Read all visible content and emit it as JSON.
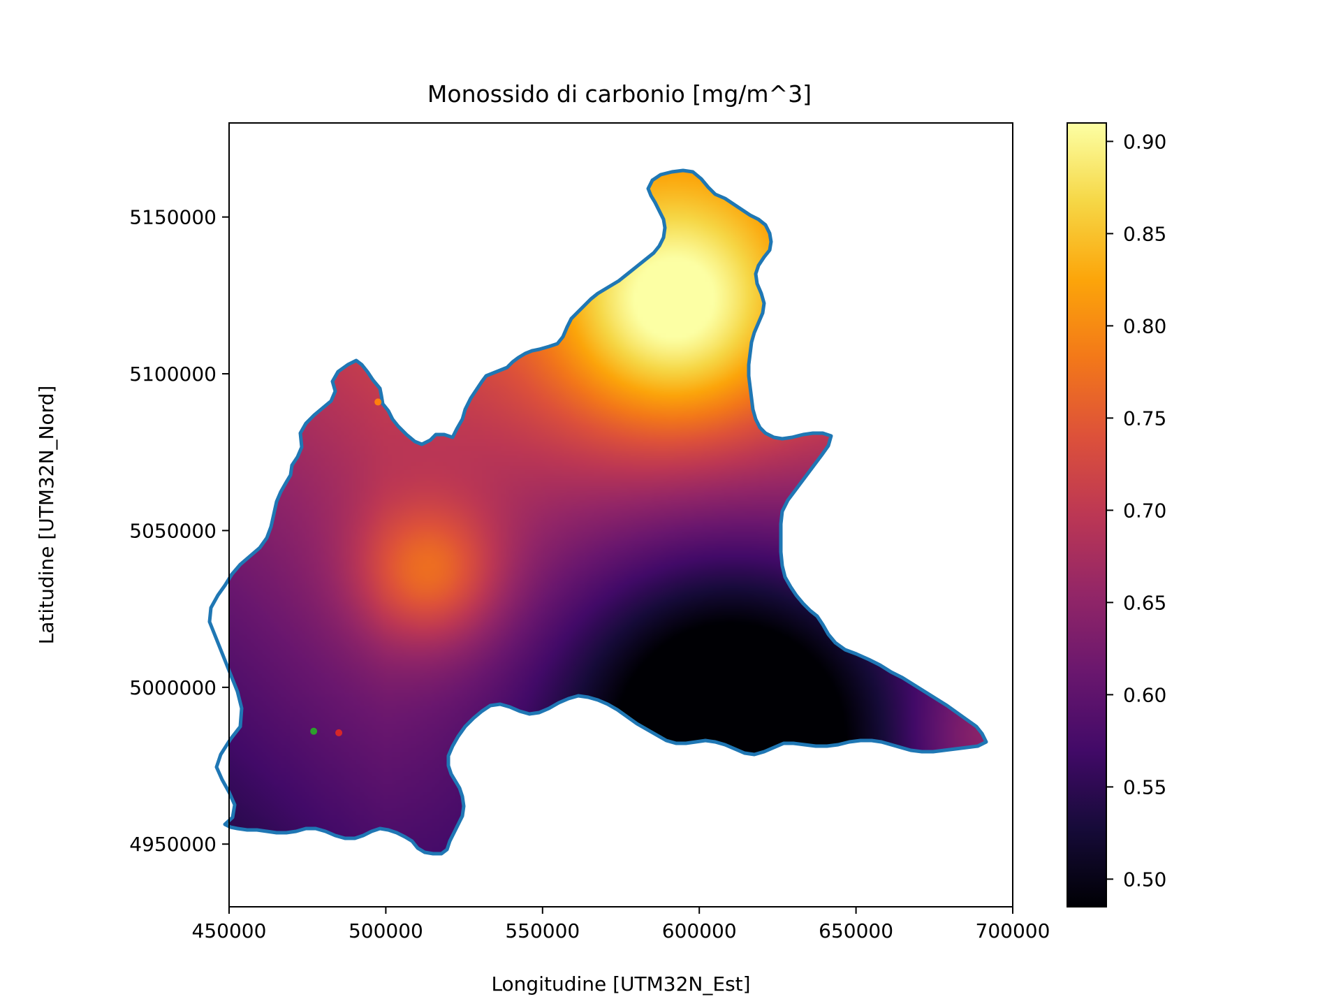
{
  "chart_data": {
    "type": "heatmap",
    "title": "Monossido di carbonio [mg/m^3]",
    "xlabel": "Longitudine [UTM32N_Est]",
    "ylabel": "Latitudine [UTM32N_Nord]",
    "xlim": [
      450000,
      700000
    ],
    "ylim": [
      4930000,
      5180000
    ],
    "xticks": [
      450000,
      500000,
      550000,
      600000,
      650000,
      700000
    ],
    "yticks": [
      4950000,
      5000000,
      5050000,
      5100000,
      5150000
    ],
    "colormap": "inferno",
    "colorbar": {
      "range": [
        0.485,
        0.91
      ],
      "ticks": [
        0.5,
        0.55,
        0.6,
        0.65,
        0.7,
        0.75,
        0.8,
        0.85,
        0.9
      ],
      "tick_labels": [
        "0.50",
        "0.55",
        "0.60",
        "0.65",
        "0.70",
        "0.75",
        "0.80",
        "0.85",
        "0.90"
      ]
    },
    "boundary_color": "#1f77b4",
    "field_peaks": [
      {
        "x": 592000,
        "y": 5120000,
        "value": 0.91
      },
      {
        "x": 514000,
        "y": 5036000,
        "value": 0.8
      },
      {
        "x": 610000,
        "y": 4993000,
        "value": 0.49
      }
    ],
    "markers": [
      {
        "x": 477000,
        "y": 4986000,
        "color": "#2ca02c"
      },
      {
        "x": 485000,
        "y": 4985500,
        "color": "#d62728"
      },
      {
        "x": 497500,
        "y": 5091000,
        "color": "#ff7f0e"
      }
    ]
  }
}
